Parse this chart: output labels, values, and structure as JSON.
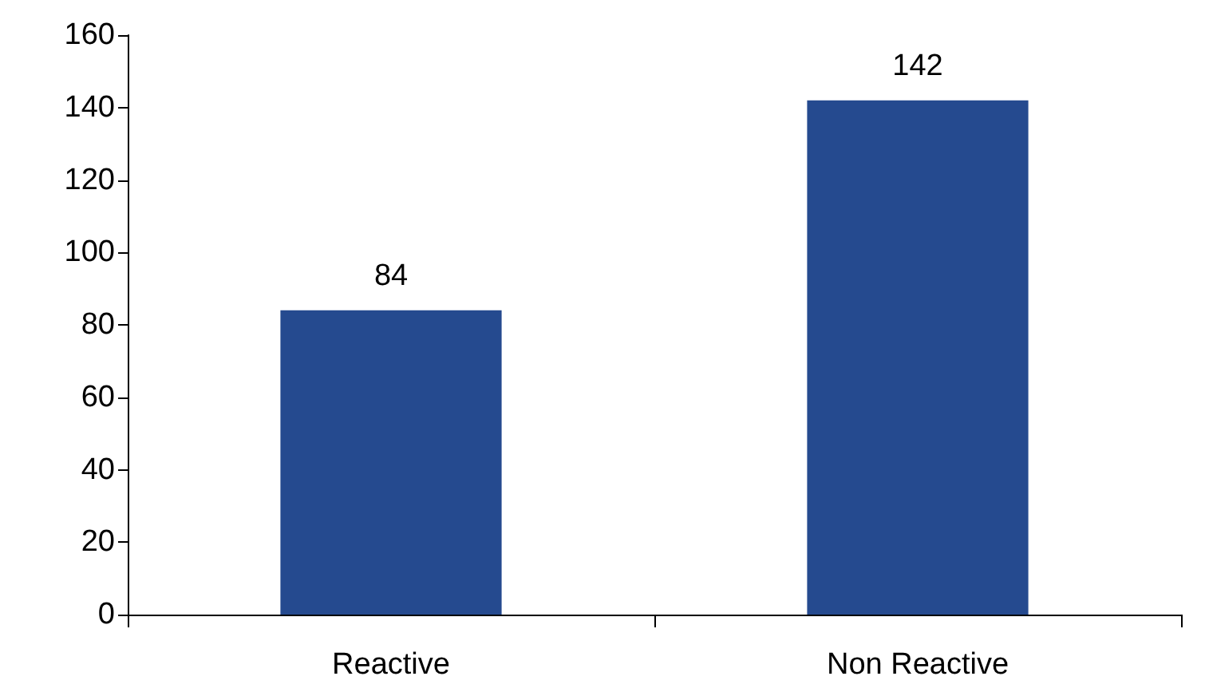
{
  "chart_data": {
    "type": "bar",
    "categories": [
      "Reactive",
      "Non Reactive"
    ],
    "values": [
      84,
      142
    ],
    "color": "#254a8f",
    "ylim": [
      0,
      160
    ],
    "yticks": [
      0,
      20,
      40,
      60,
      80,
      100,
      120,
      140,
      160
    ],
    "grid": false,
    "data_labels": true
  }
}
